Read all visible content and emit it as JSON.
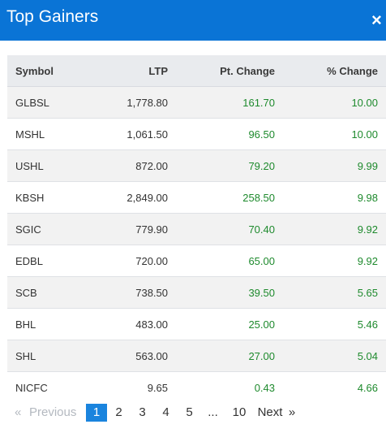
{
  "header": {
    "title": "Top Gainers",
    "close_label": "×"
  },
  "table": {
    "columns": [
      "Symbol",
      "LTP",
      "Pt. Change",
      "% Change"
    ],
    "rows": [
      {
        "symbol": "GLBSL",
        "ltp": "1,778.80",
        "pt_change": "161.70",
        "pct_change": "10.00"
      },
      {
        "symbol": "MSHL",
        "ltp": "1,061.50",
        "pt_change": "96.50",
        "pct_change": "10.00"
      },
      {
        "symbol": "USHL",
        "ltp": "872.00",
        "pt_change": "79.20",
        "pct_change": "9.99"
      },
      {
        "symbol": "KBSH",
        "ltp": "2,849.00",
        "pt_change": "258.50",
        "pct_change": "9.98"
      },
      {
        "symbol": "SGIC",
        "ltp": "779.90",
        "pt_change": "70.40",
        "pct_change": "9.92"
      },
      {
        "symbol": "EDBL",
        "ltp": "720.00",
        "pt_change": "65.00",
        "pct_change": "9.92"
      },
      {
        "symbol": "SCB",
        "ltp": "738.50",
        "pt_change": "39.50",
        "pct_change": "5.65"
      },
      {
        "symbol": "BHL",
        "ltp": "483.00",
        "pt_change": "25.00",
        "pct_change": "5.46"
      },
      {
        "symbol": "SHL",
        "ltp": "563.00",
        "pt_change": "27.00",
        "pct_change": "5.04"
      },
      {
        "symbol": "NICFC",
        "ltp": "9.65",
        "pt_change": "0.43",
        "pct_change": "4.66"
      }
    ]
  },
  "pagination": {
    "prev_arrow": "«",
    "prev_label": "Previous",
    "pages": [
      "1",
      "2",
      "3",
      "4",
      "5",
      "...",
      "10"
    ],
    "active_page": "1",
    "next_label": "Next",
    "next_arrow": "»"
  },
  "colors": {
    "header_bg": "#0a74d6",
    "positive": "#1e8a2d",
    "active_page_bg": "#1a84de"
  }
}
